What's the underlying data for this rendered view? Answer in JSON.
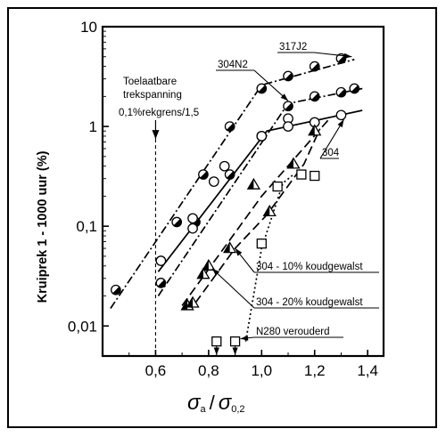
{
  "chart_data": {
    "type": "scatter",
    "xlabel": "σa / σ0,2",
    "ylabel": "Kruiprek 1 - 1000 uur (%)",
    "xscale": "linear",
    "yscale": "log",
    "xlim": [
      0.4,
      1.46
    ],
    "ylim": [
      0.005,
      10
    ],
    "xticks": [
      0.6,
      0.8,
      1.0,
      1.2,
      1.4
    ],
    "xtick_labels": [
      "0,6",
      "0,8",
      "1,0",
      "1,2",
      "1,4"
    ],
    "yticks": [
      0.01,
      0.1,
      1,
      10
    ],
    "ytick_labels": [
      "0,01",
      "0,1",
      "1",
      "10"
    ],
    "grid": false,
    "reference_line": {
      "x": 0.6,
      "label_lines": [
        "Toelaatbare",
        "trekspanning",
        "0,1%rekgrens/1,5"
      ]
    },
    "series": [
      {
        "name": "304N2",
        "marker": "circle-half-dark",
        "line": "dash-dot",
        "points": [
          [
            0.45,
            0.023
          ],
          [
            0.62,
            0.045
          ],
          [
            0.68,
            0.11
          ],
          [
            0.78,
            0.33
          ],
          [
            0.88,
            1.0
          ],
          [
            1.0,
            2.4
          ],
          [
            1.1,
            3.2
          ],
          [
            1.2,
            4.0
          ],
          [
            1.3,
            4.8
          ]
        ],
        "fit": [
          [
            0.43,
            0.015
          ],
          [
            1.0,
            2.6
          ],
          [
            1.35,
            4.7
          ]
        ]
      },
      {
        "name": "317J2",
        "marker": "circle-half-dark",
        "line": "dash-dot",
        "points": [
          [
            0.62,
            0.027
          ],
          [
            0.75,
            0.11
          ],
          [
            0.88,
            0.33
          ],
          [
            1.0,
            0.8
          ],
          [
            1.1,
            1.6
          ],
          [
            1.2,
            2.0
          ],
          [
            1.3,
            2.2
          ],
          [
            1.35,
            2.4
          ]
        ],
        "fit": [
          [
            0.61,
            0.02
          ],
          [
            1.1,
            1.7
          ],
          [
            1.38,
            2.4
          ]
        ]
      },
      {
        "name": "304",
        "marker": "circle-open",
        "line": "solid",
        "points": [
          [
            0.62,
            0.045
          ],
          [
            0.74,
            0.12
          ],
          [
            0.74,
            0.095
          ],
          [
            0.82,
            0.28
          ],
          [
            0.86,
            0.4
          ],
          [
            1.0,
            0.8
          ],
          [
            1.1,
            1.2
          ],
          [
            1.1,
            1.0
          ],
          [
            1.2,
            1.1
          ],
          [
            1.3,
            1.3
          ]
        ],
        "fit": [
          [
            0.61,
            0.035
          ],
          [
            1.02,
            0.9
          ],
          [
            1.38,
            1.45
          ]
        ]
      },
      {
        "name": "304 - 10% koudgewalst",
        "marker": "triangle-half-dark",
        "line": "dashed",
        "points": [
          [
            0.72,
            0.016
          ],
          [
            0.78,
            0.033
          ],
          [
            0.88,
            0.06
          ],
          [
            0.97,
            0.26
          ],
          [
            1.03,
            0.14
          ],
          [
            1.12,
            0.42
          ],
          [
            1.2,
            0.9
          ]
        ],
        "fit": [
          [
            0.7,
            0.016
          ],
          [
            1.0,
            0.2
          ],
          [
            1.25,
            1.15
          ]
        ]
      },
      {
        "name": "304 - 20% koudgewalst",
        "marker": "triangle-half-dark",
        "line": "dashed",
        "points": [
          [
            0.74,
            0.017
          ],
          [
            0.8,
            0.04
          ]
        ],
        "fit": [
          [
            0.75,
            0.017
          ],
          [
            0.9,
            0.06
          ],
          [
            1.02,
            0.13
          ],
          [
            1.16,
            0.42
          ],
          [
            1.22,
            0.95
          ]
        ]
      },
      {
        "name": "N280 verouderd",
        "marker": "square-open",
        "line": "dotted",
        "points": [
          [
            0.83,
            0.007
          ],
          [
            0.9,
            0.007
          ],
          [
            1.0,
            0.067
          ],
          [
            1.06,
            0.25
          ],
          [
            1.15,
            0.33
          ],
          [
            1.2,
            0.32
          ]
        ],
        "fit": [
          [
            0.94,
            0.007
          ],
          [
            1.0,
            0.06
          ],
          [
            1.08,
            0.27
          ],
          [
            1.12,
            0.33
          ]
        ]
      }
    ],
    "annotations": [
      "Toelaatbare",
      "trekspanning",
      "0,1%rekgrens/1,5",
      "317J2",
      "304N2",
      "304",
      "304 - 10% koudgewalst",
      "304 - 20% koudgewalst",
      "N280 verouderd"
    ]
  },
  "symbols": {
    "sigma": "σ",
    "sub_a": "a",
    "slash": "/",
    "sub_02": "0,2"
  }
}
